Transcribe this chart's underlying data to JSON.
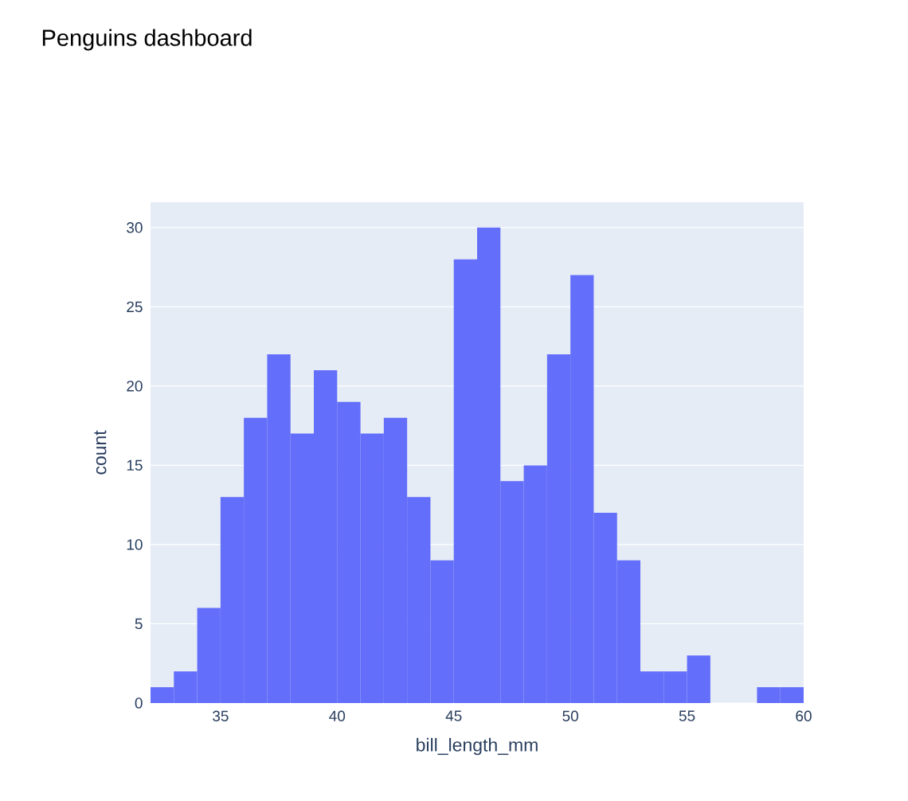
{
  "chart_data": {
    "type": "histogram",
    "title": "Penguins dashboard",
    "xlabel": "bill_length_mm",
    "ylabel": "count",
    "bins": [
      32,
      33,
      34,
      35,
      36,
      37,
      38,
      39,
      40,
      41,
      42,
      43,
      44,
      45,
      46,
      47,
      48,
      49,
      50,
      51,
      52,
      53,
      54,
      55,
      56,
      57,
      58,
      59,
      60
    ],
    "values": [
      1,
      2,
      6,
      13,
      18,
      22,
      17,
      21,
      19,
      17,
      18,
      13,
      9,
      28,
      30,
      14,
      15,
      22,
      27,
      12,
      9,
      2,
      2,
      3,
      0,
      0,
      1,
      1
    ],
    "color": "#636efa",
    "xlim": [
      32,
      60
    ],
    "ylim": [
      0,
      31.6
    ],
    "xticks": [
      35,
      40,
      45,
      50,
      55,
      60
    ],
    "yticks": [
      0,
      5,
      10,
      15,
      20,
      25,
      30
    ],
    "grid": "y"
  }
}
